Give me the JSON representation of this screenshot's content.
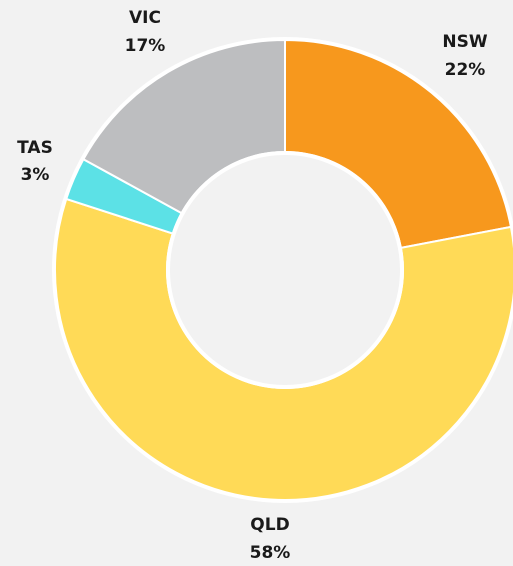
{
  "chart_data": {
    "type": "donut",
    "categories": [
      "NSW",
      "QLD",
      "TAS",
      "VIC"
    ],
    "values": [
      22,
      58,
      3,
      17
    ],
    "value_labels": [
      "22%",
      "58%",
      "3%",
      "17%"
    ],
    "colors": [
      "#f7981d",
      "#ffda57",
      "#5ce1e6",
      "#bdbec0"
    ]
  }
}
